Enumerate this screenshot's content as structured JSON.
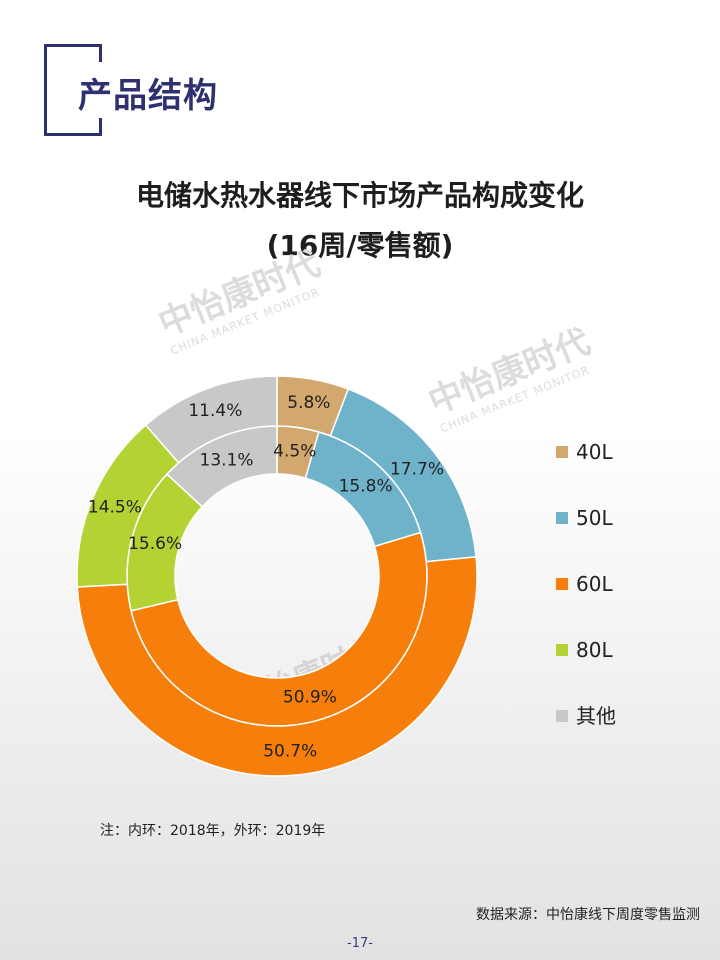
{
  "header": {
    "section_title": "产品结构"
  },
  "chart_data": {
    "type": "pie",
    "subtype": "double-donut",
    "title": "电储水热水器线下市场产品构成变化",
    "subtitle": "(16周/零售额)",
    "categories": [
      "40L",
      "50L",
      "60L",
      "80L",
      "其他"
    ],
    "colors": [
      "#d2a86e",
      "#6fb3cb",
      "#f57f0a",
      "#b3d335",
      "#c8c8c8"
    ],
    "series": [
      {
        "ring": "inner",
        "values": [
          4.5,
          15.8,
          50.9,
          15.6,
          13.1
        ],
        "labels": [
          "4.5%",
          "15.8%",
          "50.9%",
          "15.6%",
          "13.1%"
        ]
      },
      {
        "ring": "outer",
        "values": [
          5.8,
          17.7,
          50.7,
          14.5,
          11.4
        ],
        "labels": [
          "5.8%",
          "17.7%",
          "50.7%",
          "14.5%",
          "11.4%"
        ]
      }
    ],
    "legend_position": "right"
  },
  "watermark": {
    "text": "中怡康时代",
    "sub": "CHINA MARKET MONITOR"
  },
  "footer": {
    "note": "注：内环：2018年，外环：2019年",
    "source": "数据来源：中怡康线下周度零售监测",
    "page": "-17-"
  }
}
